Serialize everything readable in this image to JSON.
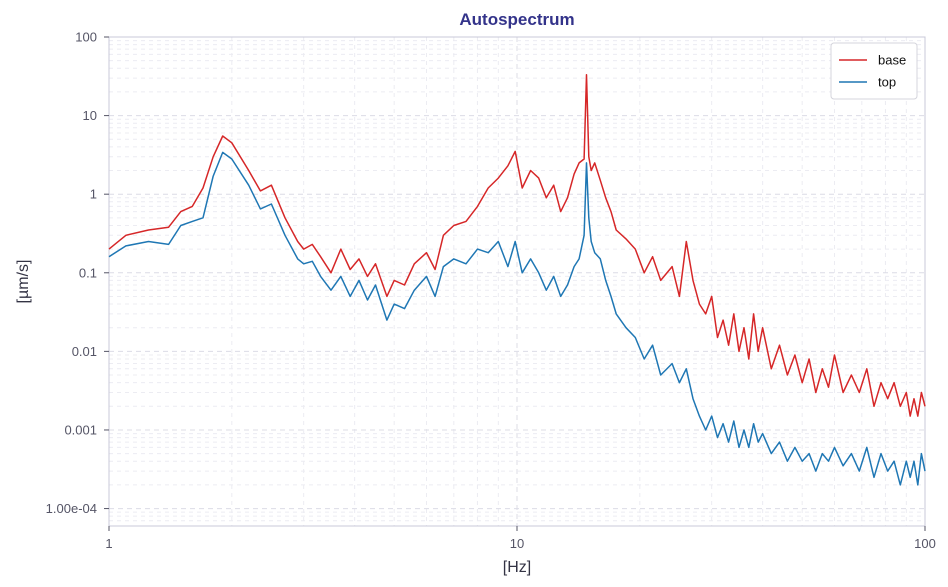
{
  "chart_data": {
    "type": "line",
    "title": "Autospectrum",
    "xlabel": "[Hz]",
    "ylabel": "[µm/s]",
    "xscale": "log",
    "yscale": "log",
    "xlim": [
      1,
      100
    ],
    "ylim": [
      6e-05,
      100
    ],
    "x_ticks": [
      {
        "value": 1,
        "label": "1"
      },
      {
        "value": 10,
        "label": "10"
      },
      {
        "value": 100,
        "label": "100"
      }
    ],
    "y_ticks": [
      {
        "value": 100,
        "label": "100"
      },
      {
        "value": 10,
        "label": "10"
      },
      {
        "value": 1,
        "label": "1"
      },
      {
        "value": 0.1,
        "label": "0.1"
      },
      {
        "value": 0.01,
        "label": "0.01"
      },
      {
        "value": 0.001,
        "label": "0.001"
      },
      {
        "value": 0.0001,
        "label": "1.00e-04"
      }
    ],
    "grid": true,
    "legend_position": "top-right",
    "series": [
      {
        "name": "base",
        "color": "#d62728",
        "x": [
          1.0,
          1.1,
          1.25,
          1.4,
          1.5,
          1.6,
          1.7,
          1.8,
          1.9,
          2.0,
          2.2,
          2.35,
          2.5,
          2.7,
          2.9,
          3.0,
          3.15,
          3.3,
          3.5,
          3.7,
          3.9,
          4.1,
          4.3,
          4.5,
          4.8,
          5.0,
          5.3,
          5.6,
          6.0,
          6.3,
          6.6,
          7.0,
          7.5,
          8.0,
          8.5,
          9.0,
          9.5,
          9.9,
          10.3,
          10.8,
          11.3,
          11.8,
          12.3,
          12.8,
          13.3,
          13.8,
          14.2,
          14.6,
          14.8,
          15.0,
          15.2,
          15.5,
          16.0,
          16.5,
          17.0,
          17.5,
          18.5,
          19.5,
          20.5,
          21.5,
          22.5,
          24.0,
          25.0,
          26.0,
          27.0,
          28.0,
          29.0,
          30.0,
          31.0,
          32.0,
          33.0,
          34.0,
          35.0,
          36.0,
          37.0,
          38.0,
          39.0,
          40.0,
          42.0,
          44.0,
          46.0,
          48.0,
          50.0,
          52.0,
          54.0,
          56.0,
          58.0,
          60.0,
          63.0,
          66.0,
          69.0,
          72.0,
          75.0,
          78.0,
          81.0,
          84.0,
          87.0,
          90.0,
          92.0,
          94.0,
          96.0,
          98.0,
          100.0
        ],
        "values": [
          0.2,
          0.3,
          0.35,
          0.38,
          0.6,
          0.7,
          1.2,
          3.0,
          5.5,
          4.5,
          2.0,
          1.1,
          1.3,
          0.5,
          0.25,
          0.2,
          0.23,
          0.16,
          0.1,
          0.2,
          0.11,
          0.15,
          0.09,
          0.13,
          0.05,
          0.08,
          0.07,
          0.13,
          0.18,
          0.11,
          0.3,
          0.4,
          0.45,
          0.7,
          1.2,
          1.6,
          2.3,
          3.5,
          1.2,
          2.0,
          1.6,
          0.9,
          1.3,
          0.6,
          0.9,
          1.8,
          2.5,
          2.8,
          33.0,
          3.0,
          2.0,
          2.5,
          1.5,
          0.9,
          0.6,
          0.35,
          0.27,
          0.2,
          0.1,
          0.16,
          0.08,
          0.12,
          0.05,
          0.25,
          0.08,
          0.04,
          0.03,
          0.05,
          0.015,
          0.025,
          0.012,
          0.03,
          0.01,
          0.02,
          0.008,
          0.03,
          0.01,
          0.02,
          0.006,
          0.012,
          0.005,
          0.009,
          0.004,
          0.008,
          0.003,
          0.006,
          0.0035,
          0.009,
          0.003,
          0.005,
          0.003,
          0.006,
          0.002,
          0.004,
          0.0025,
          0.004,
          0.002,
          0.003,
          0.0015,
          0.0025,
          0.0015,
          0.003,
          0.002
        ]
      },
      {
        "name": "top",
        "color": "#1f77b4",
        "x": [
          1.0,
          1.1,
          1.25,
          1.4,
          1.5,
          1.6,
          1.7,
          1.8,
          1.9,
          2.0,
          2.2,
          2.35,
          2.5,
          2.7,
          2.9,
          3.0,
          3.15,
          3.3,
          3.5,
          3.7,
          3.9,
          4.1,
          4.3,
          4.5,
          4.8,
          5.0,
          5.3,
          5.6,
          6.0,
          6.3,
          6.6,
          7.0,
          7.5,
          8.0,
          8.5,
          9.0,
          9.5,
          9.9,
          10.3,
          10.8,
          11.3,
          11.8,
          12.3,
          12.8,
          13.3,
          13.8,
          14.2,
          14.6,
          14.8,
          15.0,
          15.2,
          15.5,
          16.0,
          16.5,
          17.0,
          17.5,
          18.5,
          19.5,
          20.5,
          21.5,
          22.5,
          24.0,
          25.0,
          26.0,
          27.0,
          28.0,
          29.0,
          30.0,
          31.0,
          32.0,
          33.0,
          34.0,
          35.0,
          36.0,
          37.0,
          38.0,
          39.0,
          40.0,
          42.0,
          44.0,
          46.0,
          48.0,
          50.0,
          52.0,
          54.0,
          56.0,
          58.0,
          60.0,
          63.0,
          66.0,
          69.0,
          72.0,
          75.0,
          78.0,
          81.0,
          84.0,
          87.0,
          90.0,
          92.0,
          94.0,
          96.0,
          98.0,
          100.0
        ],
        "values": [
          0.16,
          0.22,
          0.25,
          0.23,
          0.4,
          0.45,
          0.5,
          1.7,
          3.4,
          2.8,
          1.3,
          0.65,
          0.75,
          0.3,
          0.15,
          0.13,
          0.14,
          0.09,
          0.06,
          0.09,
          0.05,
          0.08,
          0.045,
          0.07,
          0.025,
          0.04,
          0.035,
          0.06,
          0.09,
          0.05,
          0.12,
          0.15,
          0.13,
          0.2,
          0.18,
          0.25,
          0.12,
          0.25,
          0.1,
          0.15,
          0.1,
          0.06,
          0.09,
          0.05,
          0.07,
          0.12,
          0.15,
          0.3,
          2.5,
          0.5,
          0.25,
          0.18,
          0.15,
          0.08,
          0.05,
          0.03,
          0.02,
          0.015,
          0.008,
          0.012,
          0.005,
          0.007,
          0.004,
          0.006,
          0.0025,
          0.0015,
          0.001,
          0.0015,
          0.0008,
          0.0012,
          0.0007,
          0.0013,
          0.0006,
          0.001,
          0.0006,
          0.0012,
          0.0007,
          0.0009,
          0.0005,
          0.0007,
          0.0004,
          0.0006,
          0.0004,
          0.0005,
          0.0003,
          0.0005,
          0.0004,
          0.0006,
          0.00035,
          0.0005,
          0.0003,
          0.0006,
          0.00025,
          0.0005,
          0.0003,
          0.0004,
          0.0002,
          0.0004,
          0.00025,
          0.0004,
          0.0002,
          0.0005,
          0.0003
        ]
      }
    ]
  }
}
